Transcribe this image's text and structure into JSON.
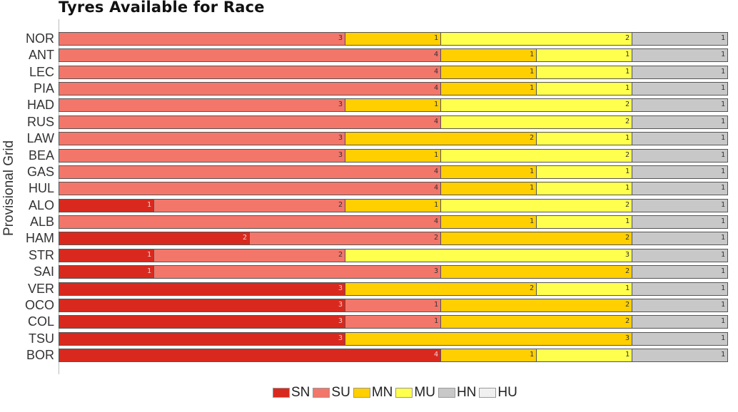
{
  "chart_data": {
    "type": "bar",
    "orientation": "horizontal",
    "stacked": true,
    "title": "Tyres Available for Race",
    "xlabel": "",
    "ylabel": "Provisional Grid",
    "xlim": [
      0,
      7
    ],
    "grid": false,
    "legend_position": "bottom",
    "categories": [
      "NOR",
      "ANT",
      "LEC",
      "PIA",
      "HAD",
      "RUS",
      "LAW",
      "BEA",
      "GAS",
      "HUL",
      "ALO",
      "ALB",
      "HAM",
      "STR",
      "SAI",
      "VER",
      "OCO",
      "COL",
      "TSU",
      "BOR"
    ],
    "series": [
      {
        "name": "SN",
        "color": "#d9291e",
        "values": [
          0,
          0,
          0,
          0,
          0,
          0,
          0,
          0,
          0,
          0,
          1,
          0,
          2,
          1,
          1,
          3,
          3,
          3,
          3,
          4
        ]
      },
      {
        "name": "SU",
        "color": "#f3766a",
        "values": [
          3,
          4,
          4,
          4,
          3,
          4,
          3,
          3,
          4,
          4,
          2,
          4,
          2,
          2,
          3,
          0,
          1,
          1,
          0,
          0
        ]
      },
      {
        "name": "MN",
        "color": "#ffcf00",
        "values": [
          1,
          1,
          1,
          1,
          1,
          0,
          2,
          1,
          1,
          1,
          1,
          1,
          2,
          0,
          2,
          2,
          2,
          2,
          3,
          1
        ]
      },
      {
        "name": "MU",
        "color": "#ffff4d",
        "values": [
          2,
          1,
          1,
          1,
          2,
          2,
          1,
          2,
          1,
          1,
          2,
          1,
          0,
          3,
          0,
          1,
          0,
          0,
          0,
          1
        ]
      },
      {
        "name": "HN",
        "color": "#c8c8c8",
        "values": [
          1,
          1,
          1,
          1,
          1,
          1,
          1,
          1,
          1,
          1,
          1,
          1,
          1,
          1,
          1,
          1,
          1,
          1,
          1,
          1
        ]
      },
      {
        "name": "HU",
        "color": "#f0f0f0",
        "values": [
          0,
          0,
          0,
          0,
          0,
          0,
          0,
          0,
          0,
          0,
          0,
          0,
          0,
          0,
          0,
          0,
          0,
          0,
          0,
          0
        ]
      }
    ]
  },
  "title": "Tyres Available for Race",
  "ylabel": "Provisional Grid",
  "legend": [
    {
      "label": "SN",
      "color": "#d9291e"
    },
    {
      "label": "SU",
      "color": "#f3766a"
    },
    {
      "label": "MN",
      "color": "#ffcf00"
    },
    {
      "label": "MU",
      "color": "#ffff4d"
    },
    {
      "label": "HN",
      "color": "#c8c8c8"
    },
    {
      "label": "HU",
      "color": "#f0f0f0"
    }
  ]
}
